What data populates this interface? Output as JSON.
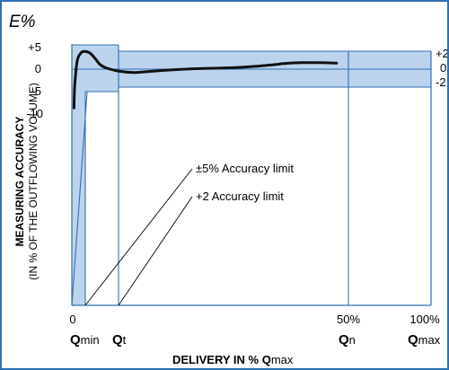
{
  "chart_data": {
    "type": "line",
    "corner_label": "E%",
    "ylabel_line1": "MEASURING ACCURACY",
    "ylabel_line2": "(IN % OF THE OUTFLOWING VOLUME)",
    "xlabel_main": "DELIVERY IN % Q",
    "xlabel_sub": "max",
    "left_ticks": [
      "+5",
      "0",
      "-5",
      "-10"
    ],
    "right_ticks": [
      "+2",
      "0",
      "-2"
    ],
    "x_tick_labels": [
      "0",
      "50%",
      "100%"
    ],
    "x_markers": [
      {
        "main": "Q",
        "sub": "min"
      },
      {
        "main": "Q",
        "sub": "t"
      },
      {
        "main": "Q",
        "sub": "n"
      },
      {
        "main": "Q",
        "sub": "max"
      }
    ],
    "annotations": [
      "±5% Accuracy limit",
      "+2 Accuracy limit"
    ],
    "band_outer_percent": 5,
    "band_inner_percent": 2,
    "series": [
      {
        "x": [
          0.6,
          0.8,
          1.5,
          2.5,
          3.5,
          5,
          6.5,
          8,
          10,
          14,
          18,
          25,
          35,
          45,
          50,
          55,
          58,
          60,
          65,
          70,
          75
        ],
        "y": [
          -8.5,
          -4,
          1.5,
          3.2,
          3.6,
          3.3,
          2.2,
          0.8,
          0,
          -0.7,
          -0.9,
          -0.5,
          -0.1,
          0.1,
          0.3,
          0.6,
          0.8,
          1.0,
          1.2,
          1.2,
          1.1
        ]
      }
    ],
    "colors": {
      "band": "#bcd3ee",
      "frame": "#2f6fb0",
      "curve": "#111111",
      "guide": "#2f6fb0"
    }
  }
}
